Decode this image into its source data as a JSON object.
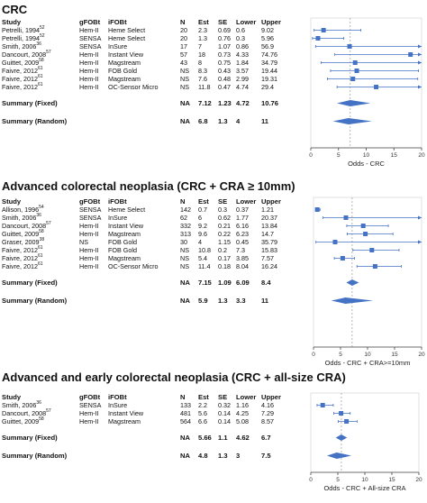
{
  "columns": {
    "study": "Study",
    "gfobt": "gFOBt",
    "ifobt": "iFOBt",
    "n": "N",
    "est": "Est",
    "se": "SE",
    "lower": "Lower",
    "upper": "Upper"
  },
  "chart_data": [
    {
      "type": "forest",
      "title": "CRC",
      "xlabel": "Odds - CRC",
      "xlim": [
        0,
        20
      ],
      "xticks": [
        0,
        5,
        10,
        15,
        20
      ],
      "reference_line": 7.12,
      "rows": [
        {
          "study": "Petrelli, 1994",
          "ref": "52",
          "gfobt": "Hem-II",
          "ifobt": "Heme Select",
          "n": "20",
          "est": "2.3",
          "se": "0.69",
          "lower": "0.6",
          "upper": "9.02",
          "v": {
            "est": 2.3,
            "lower": 0.6,
            "upper": 9.02
          }
        },
        {
          "study": "Petrelli, 1994",
          "ref": "52",
          "gfobt": "SENSA",
          "ifobt": "Heme Select",
          "n": "20",
          "est": "1.3",
          "se": "0.76",
          "lower": "0.3",
          "upper": "5.96",
          "v": {
            "est": 1.3,
            "lower": 0.3,
            "upper": 5.96
          }
        },
        {
          "study": "Smith, 2006",
          "ref": "36",
          "gfobt": "SENSA",
          "ifobt": "InSure",
          "n": "17",
          "est": "7",
          "se": "1.07",
          "lower": "0.86",
          "upper": "56.9",
          "v": {
            "est": 7,
            "lower": 0.86,
            "upper": 56.9
          }
        },
        {
          "study": "Dancourt, 2008",
          "ref": "57",
          "gfobt": "Hem-II",
          "ifobt": "Instant View",
          "n": "57",
          "est": "18",
          "se": "0.73",
          "lower": "4.33",
          "upper": "74.76",
          "v": {
            "est": 18,
            "lower": 4.33,
            "upper": 74.76
          }
        },
        {
          "study": "Guittet, 2009",
          "ref": "58",
          "gfobt": "Hem-II",
          "ifobt": "Magstream",
          "n": "43",
          "est": "8",
          "se": "0.75",
          "lower": "1.84",
          "upper": "34.79",
          "v": {
            "est": 8,
            "lower": 1.84,
            "upper": 34.79
          }
        },
        {
          "study": "Faivre, 2012",
          "ref": "61",
          "gfobt": "Hem-II",
          "ifobt": "FOB Gold",
          "n": "NS",
          "est": "8.3",
          "se": "0.43",
          "lower": "3.57",
          "upper": "19.44",
          "v": {
            "est": 8.3,
            "lower": 3.57,
            "upper": 19.44
          }
        },
        {
          "study": "Faivre, 2012",
          "ref": "61",
          "gfobt": "Hem-II",
          "ifobt": "Magstream",
          "n": "NS",
          "est": "7.6",
          "se": "0.48",
          "lower": "2.99",
          "upper": "19.31",
          "v": {
            "est": 7.6,
            "lower": 2.99,
            "upper": 19.31
          }
        },
        {
          "study": "Faivre, 2012",
          "ref": "61",
          "gfobt": "Hem-II",
          "ifobt": "OC-Sensor Micro",
          "n": "NS",
          "est": "11.8",
          "se": "0.47",
          "lower": "4.74",
          "upper": "29.4",
          "v": {
            "est": 11.8,
            "lower": 4.74,
            "upper": 29.4
          }
        }
      ],
      "summaries": [
        {
          "label": "Summary (Fixed)",
          "n": "NA",
          "est": "7.12",
          "se": "1.23",
          "lower": "4.72",
          "upper": "10.76",
          "v": {
            "est": 7.12,
            "lower": 4.72,
            "upper": 10.76
          }
        },
        {
          "label": "Summary (Random)",
          "n": "NA",
          "est": "6.8",
          "se": "1.3",
          "lower": "4",
          "upper": "11",
          "v": {
            "est": 6.8,
            "lower": 4,
            "upper": 11
          }
        }
      ]
    },
    {
      "type": "forest",
      "title": "Advanced colorectal neoplasia (CRC + CRA ≥ 10mm)",
      "xlabel": "Odds - CRC + CRA>=10mm",
      "xlim": [
        0,
        20
      ],
      "xticks": [
        0,
        5,
        10,
        15,
        20
      ],
      "reference_line": 7.15,
      "rows": [
        {
          "study": "Allison, 1996",
          "ref": "54",
          "gfobt": "SENSA",
          "ifobt": "Heme Select",
          "n": "142",
          "est": "0.7",
          "se": "0.3",
          "lower": "0.37",
          "upper": "1.21",
          "v": {
            "est": 0.7,
            "lower": 0.37,
            "upper": 1.21
          }
        },
        {
          "study": "Smith, 2006",
          "ref": "36",
          "gfobt": "SENSA",
          "ifobt": "InSure",
          "n": "62",
          "est": "6",
          "se": "0.62",
          "lower": "1.77",
          "upper": "20.37",
          "v": {
            "est": 6,
            "lower": 1.77,
            "upper": 20.37
          }
        },
        {
          "study": "Dancourt, 2008",
          "ref": "57",
          "gfobt": "Hem-II",
          "ifobt": "Instant View",
          "n": "332",
          "est": "9.2",
          "se": "0.21",
          "lower": "6.16",
          "upper": "13.84",
          "v": {
            "est": 9.2,
            "lower": 6.16,
            "upper": 13.84
          }
        },
        {
          "study": "Guittet, 2009",
          "ref": "58",
          "gfobt": "Hem-II",
          "ifobt": "Magstream",
          "n": "313",
          "est": "9.6",
          "se": "0.22",
          "lower": "6.23",
          "upper": "14.7",
          "v": {
            "est": 9.6,
            "lower": 6.23,
            "upper": 14.7
          }
        },
        {
          "study": "Graser, 2009",
          "ref": "38",
          "gfobt": "NS",
          "ifobt": "FOB Gold",
          "n": "30",
          "est": "4",
          "se": "1.15",
          "lower": "0.45",
          "upper": "35.79",
          "v": {
            "est": 4,
            "lower": 0.45,
            "upper": 35.79
          }
        },
        {
          "study": "Faivre, 2012",
          "ref": "61",
          "gfobt": "Hem-II",
          "ifobt": "FOB Gold",
          "n": "NS",
          "est": "10.8",
          "se": "0.2",
          "lower": "7.3",
          "upper": "15.83",
          "v": {
            "est": 10.8,
            "lower": 7.3,
            "upper": 15.83
          }
        },
        {
          "study": "Faivre, 2012",
          "ref": "61",
          "gfobt": "Hem-II",
          "ifobt": "Magstream",
          "n": "NS",
          "est": "5.4",
          "se": "0.17",
          "lower": "3.85",
          "upper": "7.57",
          "v": {
            "est": 5.4,
            "lower": 3.85,
            "upper": 7.57
          }
        },
        {
          "study": "Faivre, 2012",
          "ref": "61",
          "gfobt": "Hem-II",
          "ifobt": "OC-Sensor Micro",
          "n": "NS",
          "est": "11.4",
          "se": "0.18",
          "lower": "8.04",
          "upper": "16.24",
          "v": {
            "est": 11.4,
            "lower": 8.04,
            "upper": 16.24
          }
        }
      ],
      "summaries": [
        {
          "label": "Summary (Fixed)",
          "n": "NA",
          "est": "7.15",
          "se": "1.09",
          "lower": "6.09",
          "upper": "8.4",
          "v": {
            "est": 7.15,
            "lower": 6.09,
            "upper": 8.4
          }
        },
        {
          "label": "Summary (Random)",
          "n": "NA",
          "est": "5.9",
          "se": "1.3",
          "lower": "3.3",
          "upper": "11",
          "v": {
            "est": 5.9,
            "lower": 3.3,
            "upper": 11
          }
        }
      ]
    },
    {
      "type": "forest",
      "title": "Advanced and early colorectal neoplasia (CRC + all-size CRA)",
      "xlabel": "Odds - CRC + All-size CRA",
      "xlim": [
        0,
        20
      ],
      "xticks": [
        0,
        5,
        10,
        15,
        20
      ],
      "reference_line": 5.66,
      "rows": [
        {
          "study": "Smith, 2006",
          "ref": "36",
          "gfobt": "SENSA",
          "ifobt": "InSure",
          "n": "133",
          "est": "2.2",
          "se": "0.32",
          "lower": "1.16",
          "upper": "4.16",
          "v": {
            "est": 2.2,
            "lower": 1.16,
            "upper": 4.16
          }
        },
        {
          "study": "Dancourt, 2008",
          "ref": "57",
          "gfobt": "Hem-II",
          "ifobt": "Instant View",
          "n": "481",
          "est": "5.6",
          "se": "0.14",
          "lower": "4.25",
          "upper": "7.29",
          "v": {
            "est": 5.6,
            "lower": 4.25,
            "upper": 7.29
          }
        },
        {
          "study": "Guittet, 2009",
          "ref": "58",
          "gfobt": "Hem-II",
          "ifobt": "Magstream",
          "n": "564",
          "est": "6.6",
          "se": "0.14",
          "lower": "5.08",
          "upper": "8.57",
          "v": {
            "est": 6.6,
            "lower": 5.08,
            "upper": 8.57
          }
        }
      ],
      "summaries": [
        {
          "label": "Summary (Fixed)",
          "n": "NA",
          "est": "5.66",
          "se": "1.1",
          "lower": "4.62",
          "upper": "6.7",
          "v": {
            "est": 5.66,
            "lower": 4.62,
            "upper": 6.7
          }
        },
        {
          "label": "Summary (Random)",
          "n": "NA",
          "est": "4.8",
          "se": "1.3",
          "lower": "3",
          "upper": "7.5",
          "v": {
            "est": 4.8,
            "lower": 3,
            "upper": 7.5
          }
        }
      ]
    }
  ],
  "colors": {
    "marker": "#4472c4",
    "line": "#4472c4",
    "axis": "#444444",
    "refline": "#999999"
  }
}
